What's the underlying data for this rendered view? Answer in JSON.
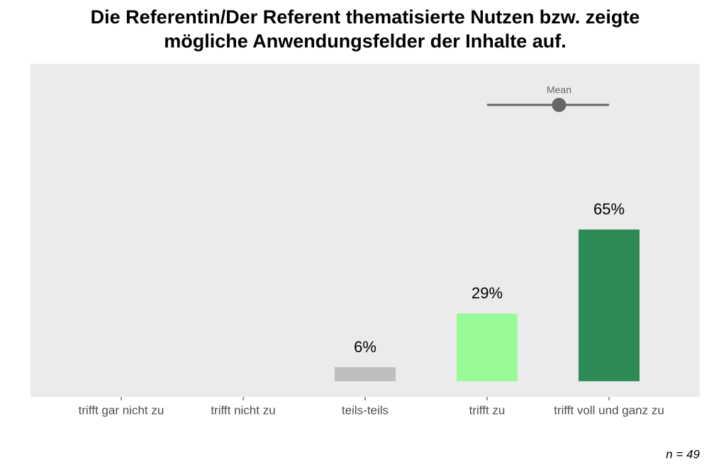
{
  "chart_data": {
    "type": "bar",
    "title": [
      "Die Referentin/Der Referent thematisierte Nutzen bzw. zeigte",
      "mögliche Anwendungsfelder der Inhalte auf."
    ],
    "categories": [
      "trifft gar nicht zu",
      "trifft nicht zu",
      "teils-teils",
      "trifft zu",
      "trifft voll und ganz zu"
    ],
    "values": [
      0,
      0,
      6,
      29,
      65
    ],
    "value_labels": [
      null,
      null,
      "6%",
      "29%",
      "65%"
    ],
    "colors": [
      null,
      null,
      "#bebebe",
      "#98fb98",
      "#2e8b57"
    ],
    "ylim": [
      -6.7,
      136
    ],
    "mean": {
      "label": "Mean",
      "value": 4.59,
      "low": 4.0,
      "high": 5.0,
      "color": "#666666"
    },
    "note": "n = 49"
  }
}
